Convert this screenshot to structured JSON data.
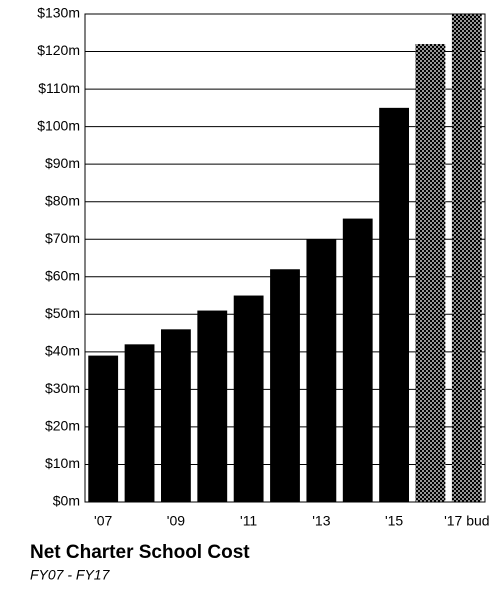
{
  "chart_data": {
    "type": "bar",
    "title": "Net Charter School Cost",
    "subtitle": "FY07 - FY17",
    "categories": [
      "'07",
      null,
      "'09",
      null,
      "'11",
      null,
      "'13",
      null,
      "'15",
      null,
      "'17 bud"
    ],
    "values": [
      39,
      42,
      46,
      51,
      55,
      62,
      70,
      75.5,
      105,
      122,
      130
    ],
    "bar_styles": [
      "solid",
      "solid",
      "solid",
      "solid",
      "solid",
      "solid",
      "solid",
      "solid",
      "solid",
      "dotted",
      "dotted"
    ],
    "color": "#000000",
    "ylim": [
      0,
      130
    ],
    "yticks": [
      {
        "value": 0,
        "label": "$0m"
      },
      {
        "value": 10,
        "label": "$10m"
      },
      {
        "value": 20,
        "label": "$20m"
      },
      {
        "value": 30,
        "label": "$30m"
      },
      {
        "value": 40,
        "label": "$40m"
      },
      {
        "value": 50,
        "label": "$50m"
      },
      {
        "value": 60,
        "label": "$60m"
      },
      {
        "value": 70,
        "label": "$70m"
      },
      {
        "value": 80,
        "label": "$80m"
      },
      {
        "value": 90,
        "label": "$90m"
      },
      {
        "value": 100,
        "label": "$100m"
      },
      {
        "value": 110,
        "label": "$110m"
      },
      {
        "value": 120,
        "label": "$120m"
      },
      {
        "value": 130,
        "label": "$130m"
      }
    ],
    "grid": true
  }
}
